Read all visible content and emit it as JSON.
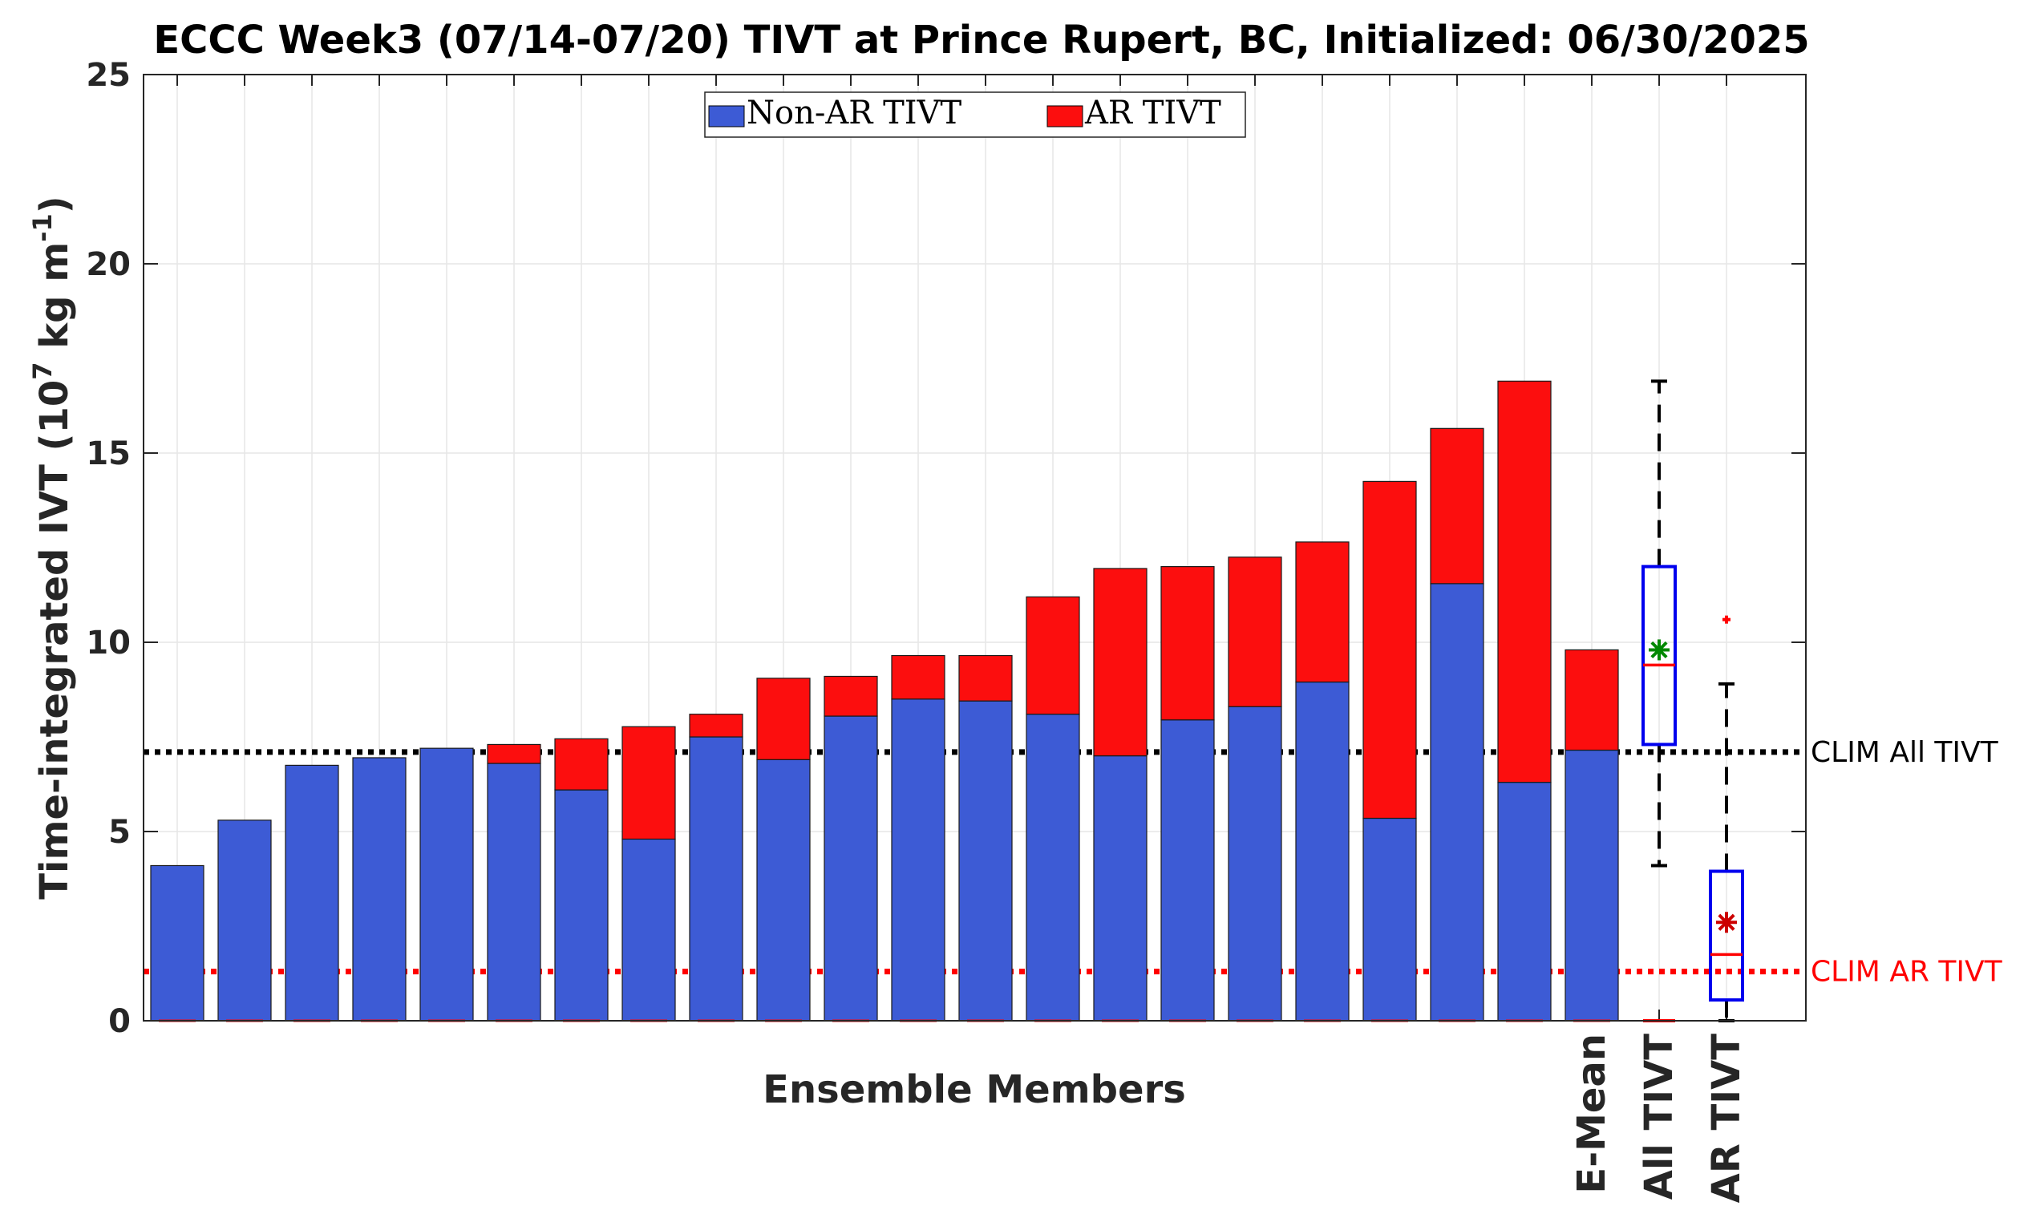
{
  "chart_data": {
    "type": "bar",
    "title": "ECCC Week3 (07/14-07/20) TIVT at Prince Rupert, BC, Initialized: 06/30/2025",
    "xlabel": "Ensemble Members",
    "ylabel": {
      "prefix": "Time-integrated IVT (10",
      "exp1": "7",
      "mid": " kg m",
      "exp2": "-1",
      "suffix": ")"
    },
    "ylim": [
      0,
      25
    ],
    "yticks": [
      "0",
      "5",
      "10",
      "15",
      "20",
      "25"
    ],
    "grid": true,
    "legend": {
      "placement": "top-center",
      "entries": [
        "Non-AR TIVT",
        "AR TIVT"
      ]
    },
    "colors": {
      "non_ar": "#3d5bd5",
      "ar": "#fc0e0e",
      "box": "#0000ee",
      "median": "#ff0000",
      "mean_all": "#008800",
      "mean_ar": "#cc0000"
    },
    "stack_totals_note": "values are bar segment heights",
    "members": [
      {
        "non_ar": 4.1,
        "ar": 0.0
      },
      {
        "non_ar": 5.3,
        "ar": 0.0
      },
      {
        "non_ar": 6.75,
        "ar": 0.0
      },
      {
        "non_ar": 6.95,
        "ar": 0.0
      },
      {
        "non_ar": 7.2,
        "ar": 0.0
      },
      {
        "non_ar": 6.8,
        "ar": 0.5
      },
      {
        "non_ar": 6.1,
        "ar": 1.35
      },
      {
        "non_ar": 4.8,
        "ar": 2.97
      },
      {
        "non_ar": 7.5,
        "ar": 0.6
      },
      {
        "non_ar": 6.9,
        "ar": 2.15
      },
      {
        "non_ar": 8.05,
        "ar": 1.05
      },
      {
        "non_ar": 8.5,
        "ar": 1.15
      },
      {
        "non_ar": 8.45,
        "ar": 1.2
      },
      {
        "non_ar": 8.1,
        "ar": 3.1
      },
      {
        "non_ar": 7.0,
        "ar": 4.95
      },
      {
        "non_ar": 7.95,
        "ar": 4.05
      },
      {
        "non_ar": 8.3,
        "ar": 3.95
      },
      {
        "non_ar": 8.95,
        "ar": 3.7
      },
      {
        "non_ar": 5.35,
        "ar": 8.9
      },
      {
        "non_ar": 11.55,
        "ar": 4.1
      },
      {
        "non_ar": 6.3,
        "ar": 10.6
      }
    ],
    "ensemble_mean": {
      "label": "E-Mean",
      "non_ar": 7.15,
      "ar": 2.65
    },
    "boxplots": [
      {
        "label": "All TIVT",
        "whisker_low": 4.1,
        "q1": 7.3,
        "median": 9.4,
        "q3": 12.0,
        "whisker_high": 16.9,
        "mean": 9.8,
        "outliers": []
      },
      {
        "label": "AR TIVT",
        "whisker_low": 0.0,
        "q1": 0.55,
        "median": 1.75,
        "q3": 3.95,
        "whisker_high": 8.9,
        "mean": 2.6,
        "outliers": [
          10.6
        ]
      }
    ],
    "reference_lines": [
      {
        "label": "CLIM All TIVT",
        "value": 7.1,
        "color": "#000000"
      },
      {
        "label": "CLIM AR TIVT",
        "value": 1.3,
        "color": "#ff0000"
      }
    ]
  }
}
